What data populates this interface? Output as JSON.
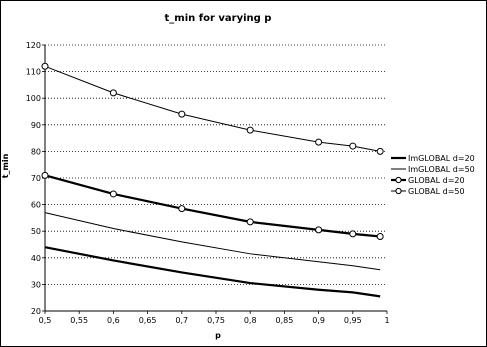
{
  "chart_data": {
    "type": "line",
    "title": "t_min for varying p",
    "xlabel": "p",
    "ylabel": "t_min",
    "xlim": [
      0.5,
      1
    ],
    "ylim": [
      20,
      120
    ],
    "x_ticks": [
      "0,5",
      "0,55",
      "0,6",
      "0,65",
      "0,7",
      "0,75",
      "0,8",
      "0,85",
      "0,9",
      "0,95",
      "1"
    ],
    "y_ticks": [
      "20",
      "30",
      "40",
      "50",
      "60",
      "70",
      "80",
      "90",
      "100",
      "110",
      "120"
    ],
    "grid": "horizontal dotted",
    "legend_position": "right",
    "series": [
      {
        "name": "ImGLOBAL d=20",
        "x": [
          0.5,
          0.6,
          0.7,
          0.8,
          0.9,
          0.95,
          0.99
        ],
        "y": [
          44,
          39,
          34.5,
          30.5,
          28,
          27,
          25.5
        ],
        "stroke": "bold",
        "marker": "none"
      },
      {
        "name": "ImGLOBAL d=50",
        "x": [
          0.5,
          0.6,
          0.7,
          0.8,
          0.9,
          0.95,
          0.99
        ],
        "y": [
          57,
          51,
          46,
          41.5,
          38.5,
          37,
          35.5
        ],
        "stroke": "thin",
        "marker": "none"
      },
      {
        "name": "GLOBAL d=20",
        "x": [
          0.5,
          0.6,
          0.7,
          0.8,
          0.9,
          0.95,
          0.99
        ],
        "y": [
          71,
          64,
          58.5,
          53.5,
          50.5,
          49,
          48
        ],
        "stroke": "bold",
        "marker": "circle"
      },
      {
        "name": "GLOBAL d=50",
        "x": [
          0.5,
          0.6,
          0.7,
          0.8,
          0.9,
          0.95,
          0.99
        ],
        "y": [
          112,
          102,
          94,
          88,
          83.5,
          82,
          80
        ],
        "stroke": "thin",
        "marker": "circle"
      }
    ]
  }
}
